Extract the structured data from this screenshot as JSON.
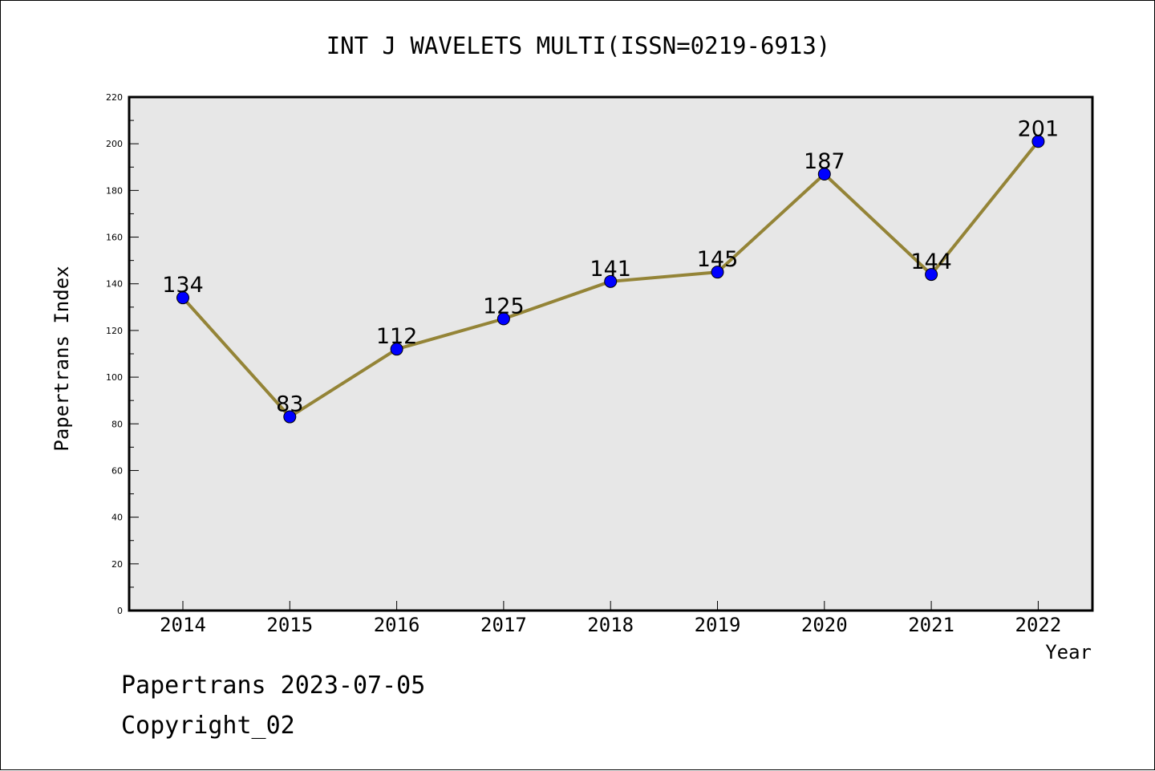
{
  "chart_data": {
    "type": "line",
    "title": "INT J WAVELETS MULTI(ISSN=0219-6913)",
    "xlabel": "Year",
    "ylabel": "Papertrans Index",
    "categories": [
      "2014",
      "2015",
      "2016",
      "2017",
      "2018",
      "2019",
      "2020",
      "2021",
      "2022"
    ],
    "series": [
      {
        "values": [
          134,
          83,
          112,
          125,
          141,
          145,
          187,
          144,
          201
        ]
      }
    ],
    "data_labels": [
      "134",
      "83",
      "112",
      "125",
      "141",
      "145",
      "187",
      "144",
      "201"
    ],
    "ylim": [
      0,
      220
    ],
    "yticks": [
      "0",
      "20",
      "40",
      "60",
      "80",
      "100",
      "120",
      "140",
      "160",
      "180",
      "200",
      "220"
    ],
    "grid": false,
    "legend": "none",
    "colors": {
      "line": "#948437",
      "marker": "#0000ff",
      "plot_background": "#e7e7e7"
    }
  },
  "footer": {
    "date_line": "Papertrans 2023-07-05",
    "copyright": "Copyright_02"
  }
}
